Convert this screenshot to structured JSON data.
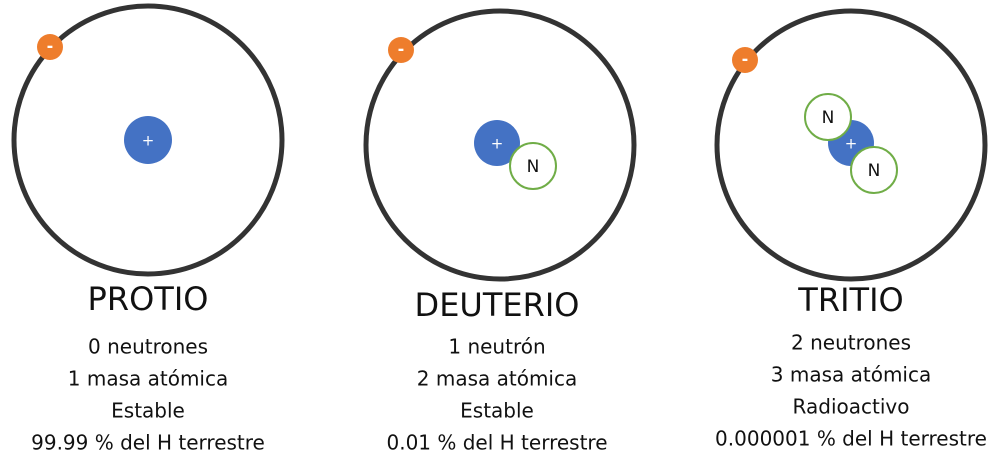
{
  "isotopes": [
    {
      "name": "PROTIO",
      "electron": "-",
      "proton": "+",
      "neutrons": [],
      "lines": [
        "0 neutrones",
        "1 masa atómica",
        "Estable",
        "99.99 % del H terrestre"
      ]
    },
    {
      "name": "DEUTERIO",
      "electron": "-",
      "proton": "+",
      "neutrons": [
        "N"
      ],
      "lines": [
        "1 neutrón",
        "2 masa atómica",
        "Estable",
        "0.01 % del H terrestre"
      ]
    },
    {
      "name": "TRITIO",
      "electron": "-",
      "proton": "+",
      "neutrons": [
        "N",
        "N"
      ],
      "lines": [
        "2 neutrones",
        "3 masa atómica",
        "Radioactivo",
        "0.000001 % del H terrestre"
      ]
    }
  ]
}
